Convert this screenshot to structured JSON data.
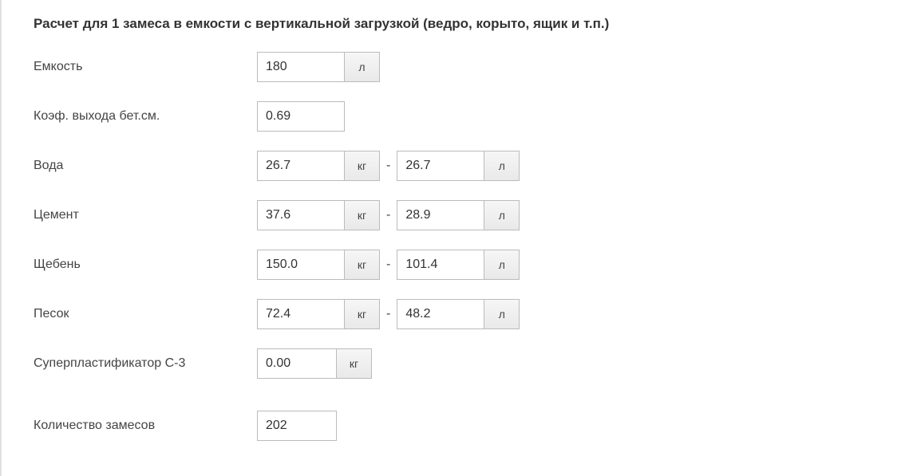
{
  "heading": "Расчет для 1 замеса в емкости с вертикальной загрузкой (ведро, корыто, ящик и т.п.)",
  "units": {
    "liters": "л",
    "kg": "кг"
  },
  "rows": {
    "capacity": {
      "label": "Емкость",
      "value": "180"
    },
    "coef": {
      "label": "Коэф. выхода бет.см.",
      "value": "0.69"
    },
    "water": {
      "label": "Вода",
      "kg": "26.7",
      "liters": "26.7"
    },
    "cement": {
      "label": "Цемент",
      "kg": "37.6",
      "liters": "28.9"
    },
    "gravel": {
      "label": "Щебень",
      "kg": "150.0",
      "liters": "101.4"
    },
    "sand": {
      "label": "Песок",
      "kg": "72.4",
      "liters": "48.2"
    },
    "superplastifier": {
      "label": "Суперпластификатор С-3",
      "value": "0.00"
    },
    "mixCount": {
      "label": "Количество замесов",
      "value": "202"
    }
  },
  "dash": "-"
}
